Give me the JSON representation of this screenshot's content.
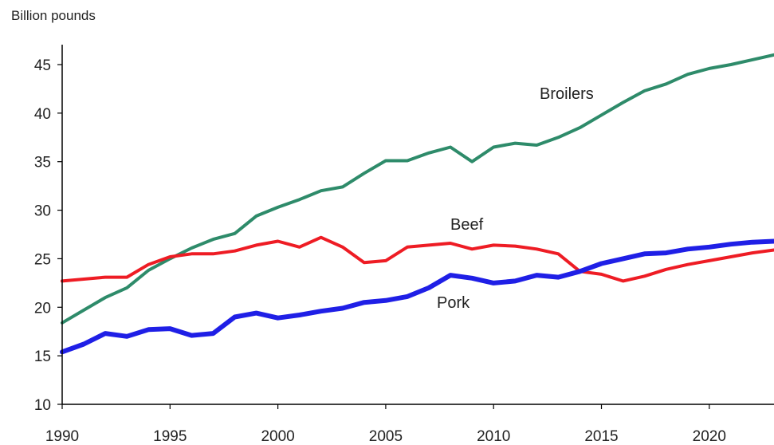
{
  "chart_data": {
    "type": "line",
    "ylabel": "Billion pounds",
    "xlim": [
      1990,
      2023
    ],
    "ylim": [
      10,
      47
    ],
    "x_ticks": [
      1990,
      1995,
      2000,
      2005,
      2010,
      2015,
      2020
    ],
    "y_ticks": [
      10,
      15,
      20,
      25,
      30,
      35,
      40,
      45
    ],
    "grid": false,
    "legend": "inline labels",
    "x": [
      1990,
      1991,
      1992,
      1993,
      1994,
      1995,
      1996,
      1997,
      1998,
      1999,
      2000,
      2001,
      2002,
      2003,
      2004,
      2005,
      2006,
      2007,
      2008,
      2009,
      2010,
      2011,
      2012,
      2013,
      2014,
      2015,
      2016,
      2017,
      2018,
      2019,
      2020,
      2021,
      2022,
      2023
    ],
    "series": [
      {
        "name": "Broilers",
        "color": "#2e8b6a",
        "values": [
          18.4,
          19.7,
          21.0,
          22.0,
          23.8,
          25.0,
          26.1,
          27.0,
          27.6,
          29.4,
          30.3,
          31.1,
          32.0,
          32.4,
          33.8,
          35.1,
          35.1,
          35.9,
          36.5,
          35.0,
          36.5,
          36.9,
          36.7,
          37.5,
          38.5,
          39.8,
          41.1,
          42.3,
          43.0,
          44.0,
          44.6,
          45.0,
          45.5,
          46.0
        ]
      },
      {
        "name": "Beef",
        "color": "#ee1c24",
        "values": [
          22.7,
          22.9,
          23.1,
          23.1,
          24.4,
          25.2,
          25.5,
          25.5,
          25.8,
          26.4,
          26.8,
          26.2,
          27.2,
          26.2,
          24.6,
          24.8,
          26.2,
          26.4,
          26.6,
          26.0,
          26.4,
          26.3,
          26.0,
          25.5,
          23.7,
          23.4,
          22.7,
          23.2,
          23.9,
          24.4,
          24.8,
          25.2,
          25.6,
          25.9
        ]
      },
      {
        "name": "Pork",
        "color": "#1f1fe6",
        "values": [
          15.4,
          16.2,
          17.3,
          17.0,
          17.7,
          17.8,
          17.1,
          17.3,
          19.0,
          19.4,
          18.9,
          19.2,
          19.6,
          19.9,
          20.5,
          20.7,
          21.1,
          22.0,
          23.3,
          23.0,
          22.5,
          22.7,
          23.3,
          23.1,
          23.7,
          24.5,
          25.0,
          25.5,
          25.6,
          26.0,
          26.2,
          26.5,
          26.7,
          26.8
        ]
      }
    ]
  }
}
